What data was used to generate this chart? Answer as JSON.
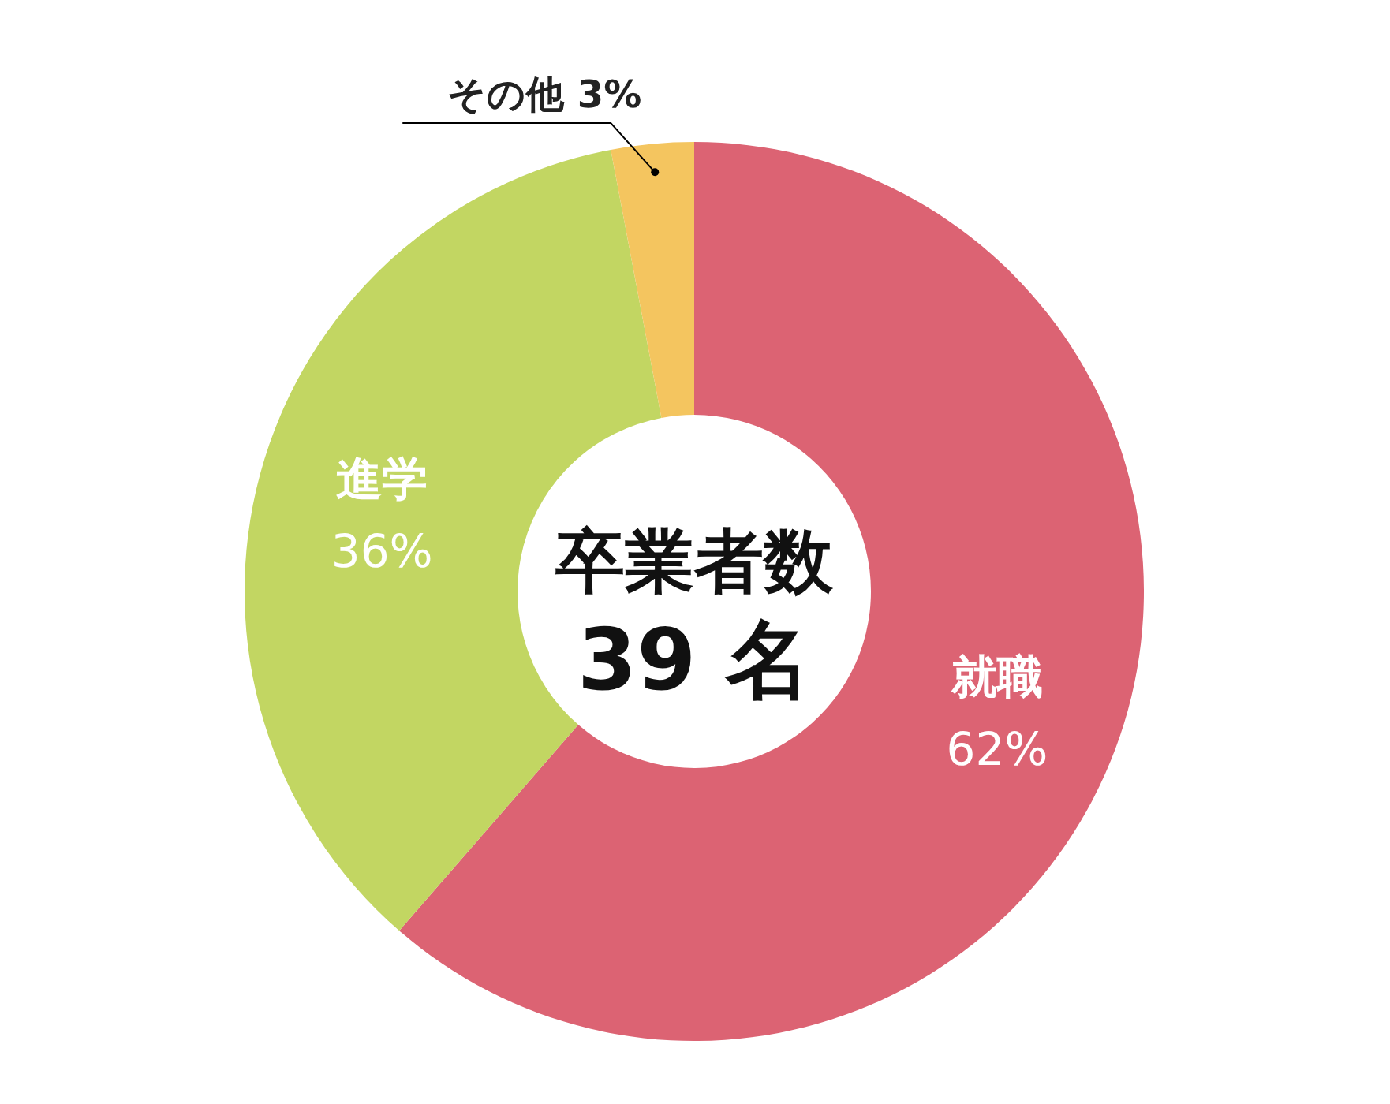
{
  "chart_data": {
    "type": "donut",
    "title": "卒業者数",
    "subtitle": "39 名",
    "categories": [
      "就職",
      "進学",
      "その他"
    ],
    "values": [
      62,
      36,
      3
    ],
    "value_labels": [
      "62%",
      "36%",
      "3%"
    ],
    "colors": [
      "#dc6373",
      "#c2d662",
      "#f4c55f"
    ]
  }
}
